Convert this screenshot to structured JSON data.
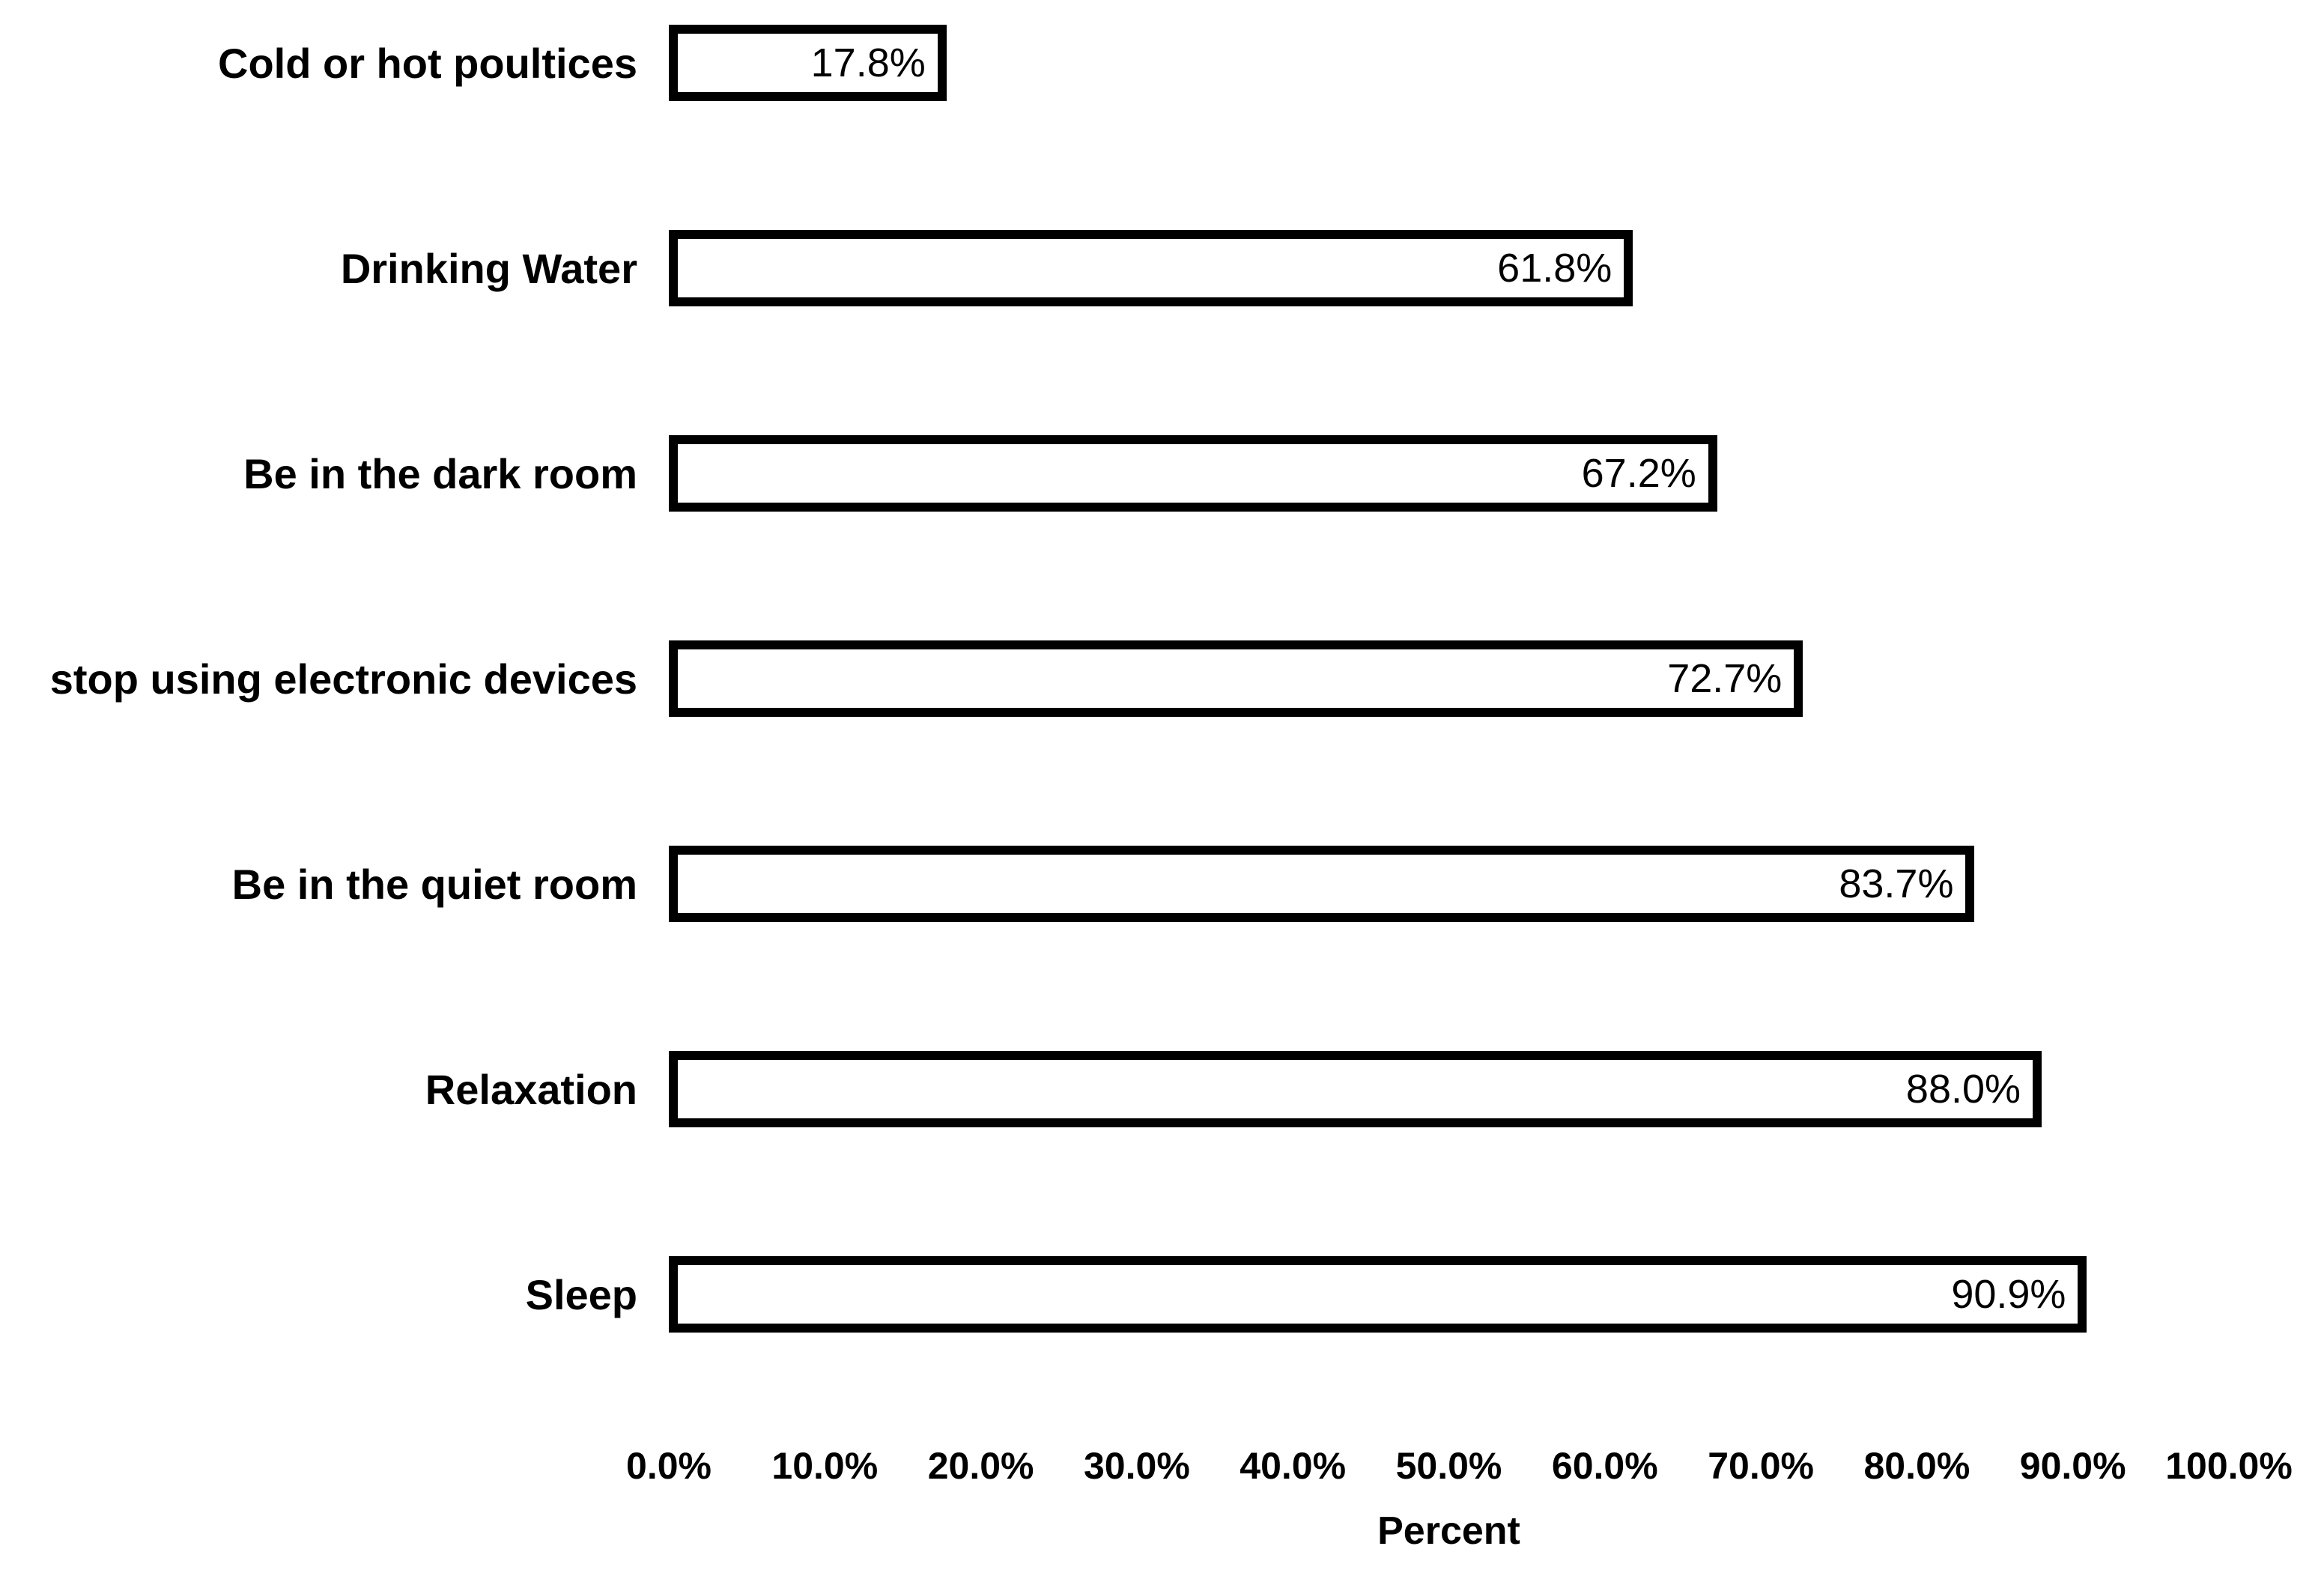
{
  "chart_data": {
    "type": "bar",
    "orientation": "horizontal",
    "title": "",
    "xlabel": "Percent",
    "ylabel": "",
    "xlim": [
      0,
      100
    ],
    "grid": false,
    "legend": false,
    "x_ticks": [
      "0.0%",
      "10.0%",
      "20.0%",
      "30.0%",
      "40.0%",
      "50.0%",
      "60.0%",
      "70.0%",
      "80.0%",
      "90.0%",
      "100.0%"
    ],
    "categories": [
      "Cold or hot poultices",
      "Drinking Water",
      "Be in the dark room",
      "stop using electronic devices",
      "Be in the quiet room",
      "Relaxation",
      "Sleep"
    ],
    "values": [
      17.8,
      61.8,
      67.2,
      72.7,
      83.7,
      88.0,
      90.9
    ],
    "value_labels": [
      "17.8%",
      "61.8%",
      "67.2%",
      "72.7%",
      "83.7%",
      "88.0%",
      "90.9%"
    ],
    "colors": {
      "background": "#ffffff",
      "bar_fill": "#ffffff",
      "bar_border": "#000000",
      "text": "#000000"
    }
  }
}
